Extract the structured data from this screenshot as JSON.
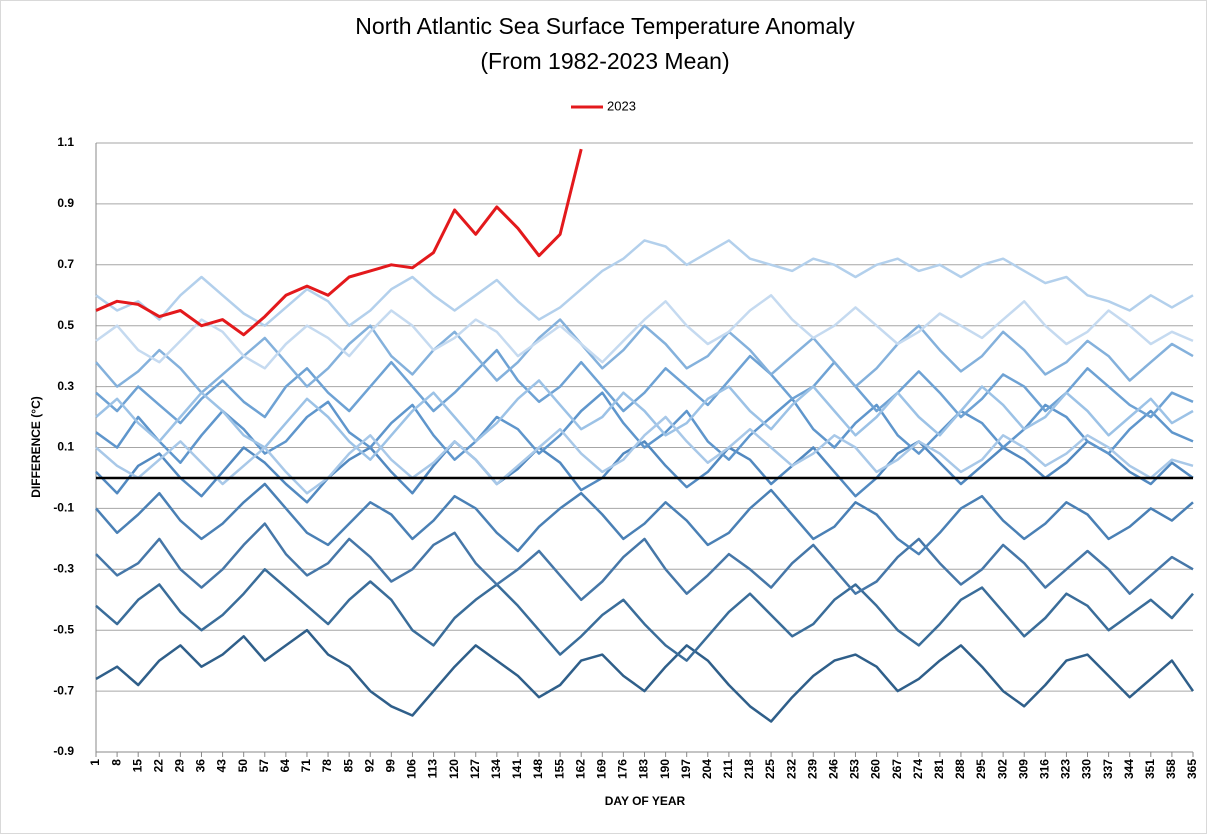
{
  "chart_data": {
    "type": "line",
    "title": "North Atlantic Sea Surface Temperature Anomaly",
    "subtitle": "(From 1982-2023 Mean)",
    "x_label": "DAY OF YEAR",
    "y_label": "DIFFERENCE (°C)",
    "x": [
      1,
      8,
      15,
      22,
      29,
      36,
      43,
      50,
      57,
      64,
      71,
      78,
      85,
      92,
      99,
      106,
      113,
      120,
      127,
      134,
      141,
      148,
      155,
      162,
      169,
      176,
      183,
      190,
      197,
      204,
      211,
      218,
      225,
      232,
      239,
      246,
      253,
      260,
      267,
      274,
      281,
      288,
      295,
      302,
      309,
      316,
      323,
      330,
      337,
      344,
      351,
      358,
      365
    ],
    "xlim": [
      1,
      365
    ],
    "xticks": [
      1,
      8,
      15,
      22,
      29,
      36,
      43,
      50,
      57,
      64,
      71,
      78,
      85,
      92,
      99,
      106,
      113,
      120,
      127,
      134,
      141,
      148,
      155,
      162,
      169,
      176,
      183,
      190,
      197,
      204,
      211,
      218,
      225,
      232,
      239,
      246,
      253,
      260,
      267,
      274,
      281,
      288,
      295,
      302,
      309,
      316,
      323,
      330,
      337,
      344,
      351,
      358,
      365
    ],
    "ylim": [
      -0.9,
      1.1
    ],
    "yticks": [
      -0.9,
      -0.7,
      -0.5,
      -0.3,
      -0.1,
      0.1,
      0.3,
      0.5,
      0.7,
      0.9,
      1.1
    ],
    "grid": true,
    "legend": "top",
    "reference_line": {
      "value": 0,
      "color": "#000000"
    },
    "series": [
      {
        "color": "#2f5f8a",
        "values": [
          -0.66,
          -0.62,
          -0.68,
          -0.6,
          -0.55,
          -0.62,
          -0.58,
          -0.52,
          -0.6,
          -0.55,
          -0.5,
          -0.58,
          -0.62,
          -0.7,
          -0.75,
          -0.78,
          -0.7,
          -0.62,
          -0.55,
          -0.6,
          -0.65,
          -0.72,
          -0.68,
          -0.6,
          -0.58,
          -0.65,
          -0.7,
          -0.62,
          -0.55,
          -0.6,
          -0.68,
          -0.75,
          -0.8,
          -0.72,
          -0.65,
          -0.6,
          -0.58,
          -0.62,
          -0.7,
          -0.66,
          -0.6,
          -0.55,
          -0.62,
          -0.7,
          -0.75,
          -0.68,
          -0.6,
          -0.58,
          -0.65,
          -0.72,
          -0.66,
          -0.6,
          -0.7
        ]
      },
      {
        "color": "#3a6d9a",
        "values": [
          -0.42,
          -0.48,
          -0.4,
          -0.35,
          -0.44,
          -0.5,
          -0.45,
          -0.38,
          -0.3,
          -0.36,
          -0.42,
          -0.48,
          -0.4,
          -0.34,
          -0.4,
          -0.5,
          -0.55,
          -0.46,
          -0.4,
          -0.35,
          -0.42,
          -0.5,
          -0.58,
          -0.52,
          -0.45,
          -0.4,
          -0.48,
          -0.55,
          -0.6,
          -0.52,
          -0.44,
          -0.38,
          -0.45,
          -0.52,
          -0.48,
          -0.4,
          -0.35,
          -0.42,
          -0.5,
          -0.55,
          -0.48,
          -0.4,
          -0.36,
          -0.44,
          -0.52,
          -0.46,
          -0.38,
          -0.42,
          -0.5,
          -0.45,
          -0.4,
          -0.46,
          -0.38
        ]
      },
      {
        "color": "#4677a8",
        "values": [
          -0.25,
          -0.32,
          -0.28,
          -0.2,
          -0.3,
          -0.36,
          -0.3,
          -0.22,
          -0.15,
          -0.25,
          -0.32,
          -0.28,
          -0.2,
          -0.26,
          -0.34,
          -0.3,
          -0.22,
          -0.18,
          -0.28,
          -0.35,
          -0.3,
          -0.24,
          -0.32,
          -0.4,
          -0.34,
          -0.26,
          -0.2,
          -0.3,
          -0.38,
          -0.32,
          -0.25,
          -0.3,
          -0.36,
          -0.28,
          -0.22,
          -0.3,
          -0.38,
          -0.34,
          -0.26,
          -0.2,
          -0.28,
          -0.35,
          -0.3,
          -0.22,
          -0.28,
          -0.36,
          -0.3,
          -0.24,
          -0.3,
          -0.38,
          -0.32,
          -0.26,
          -0.3
        ]
      },
      {
        "color": "#4a80b5",
        "values": [
          -0.1,
          -0.18,
          -0.12,
          -0.05,
          -0.14,
          -0.2,
          -0.15,
          -0.08,
          -0.02,
          -0.1,
          -0.18,
          -0.22,
          -0.15,
          -0.08,
          -0.12,
          -0.2,
          -0.14,
          -0.06,
          -0.1,
          -0.18,
          -0.24,
          -0.16,
          -0.1,
          -0.05,
          -0.12,
          -0.2,
          -0.15,
          -0.08,
          -0.14,
          -0.22,
          -0.18,
          -0.1,
          -0.04,
          -0.12,
          -0.2,
          -0.16,
          -0.08,
          -0.12,
          -0.2,
          -0.25,
          -0.18,
          -0.1,
          -0.06,
          -0.14,
          -0.2,
          -0.15,
          -0.08,
          -0.12,
          -0.2,
          -0.16,
          -0.1,
          -0.14,
          -0.08
        ]
      },
      {
        "color": "#5289c0",
        "values": [
          0.02,
          -0.05,
          0.04,
          0.08,
          0.0,
          -0.06,
          0.02,
          0.1,
          0.05,
          -0.02,
          -0.08,
          0.0,
          0.06,
          0.1,
          0.02,
          -0.05,
          0.04,
          0.12,
          0.06,
          -0.02,
          0.03,
          0.1,
          0.05,
          -0.04,
          0.0,
          0.08,
          0.12,
          0.04,
          -0.03,
          0.02,
          0.1,
          0.06,
          -0.02,
          0.04,
          0.1,
          0.02,
          -0.06,
          0.0,
          0.08,
          0.12,
          0.05,
          -0.02,
          0.04,
          0.1,
          0.06,
          0.0,
          0.05,
          0.12,
          0.08,
          0.02,
          -0.02,
          0.05,
          0.0
        ]
      },
      {
        "color": "#5f96cc",
        "values": [
          0.15,
          0.1,
          0.2,
          0.12,
          0.05,
          0.14,
          0.22,
          0.16,
          0.08,
          0.12,
          0.2,
          0.25,
          0.15,
          0.1,
          0.18,
          0.24,
          0.14,
          0.06,
          0.12,
          0.2,
          0.16,
          0.08,
          0.14,
          0.22,
          0.28,
          0.18,
          0.1,
          0.15,
          0.22,
          0.12,
          0.06,
          0.14,
          0.2,
          0.26,
          0.16,
          0.1,
          0.18,
          0.24,
          0.14,
          0.08,
          0.15,
          0.22,
          0.18,
          0.1,
          0.16,
          0.24,
          0.2,
          0.12,
          0.08,
          0.16,
          0.22,
          0.15,
          0.12
        ]
      },
      {
        "color": "#6ea2d4",
        "values": [
          0.28,
          0.22,
          0.3,
          0.24,
          0.18,
          0.26,
          0.32,
          0.25,
          0.2,
          0.3,
          0.36,
          0.28,
          0.22,
          0.3,
          0.38,
          0.3,
          0.22,
          0.28,
          0.35,
          0.42,
          0.32,
          0.25,
          0.3,
          0.38,
          0.3,
          0.22,
          0.28,
          0.36,
          0.3,
          0.24,
          0.32,
          0.4,
          0.34,
          0.26,
          0.3,
          0.38,
          0.3,
          0.22,
          0.28,
          0.35,
          0.28,
          0.2,
          0.26,
          0.34,
          0.3,
          0.22,
          0.28,
          0.36,
          0.3,
          0.24,
          0.2,
          0.28,
          0.25
        ]
      },
      {
        "color": "#84b1dc",
        "values": [
          0.38,
          0.3,
          0.35,
          0.42,
          0.36,
          0.28,
          0.34,
          0.4,
          0.46,
          0.38,
          0.3,
          0.36,
          0.44,
          0.5,
          0.4,
          0.34,
          0.42,
          0.48,
          0.4,
          0.32,
          0.38,
          0.46,
          0.52,
          0.44,
          0.36,
          0.42,
          0.5,
          0.44,
          0.36,
          0.4,
          0.48,
          0.42,
          0.34,
          0.4,
          0.46,
          0.38,
          0.3,
          0.36,
          0.44,
          0.5,
          0.42,
          0.35,
          0.4,
          0.48,
          0.42,
          0.34,
          0.38,
          0.45,
          0.4,
          0.32,
          0.38,
          0.44,
          0.4
        ]
      },
      {
        "color": "#9cc2e6",
        "values": [
          0.2,
          0.26,
          0.18,
          0.12,
          0.2,
          0.28,
          0.22,
          0.14,
          0.1,
          0.18,
          0.26,
          0.2,
          0.12,
          0.06,
          0.14,
          0.22,
          0.28,
          0.2,
          0.12,
          0.18,
          0.26,
          0.32,
          0.24,
          0.16,
          0.2,
          0.28,
          0.22,
          0.14,
          0.18,
          0.26,
          0.3,
          0.22,
          0.16,
          0.24,
          0.3,
          0.22,
          0.14,
          0.2,
          0.28,
          0.2,
          0.14,
          0.22,
          0.3,
          0.24,
          0.16,
          0.2,
          0.28,
          0.22,
          0.14,
          0.2,
          0.26,
          0.18,
          0.22
        ]
      },
      {
        "color": "#b3d0ec",
        "values": [
          0.6,
          0.55,
          0.58,
          0.52,
          0.6,
          0.66,
          0.6,
          0.54,
          0.5,
          0.56,
          0.62,
          0.58,
          0.5,
          0.55,
          0.62,
          0.66,
          0.6,
          0.55,
          0.6,
          0.65,
          0.58,
          0.52,
          0.56,
          0.62,
          0.68,
          0.72,
          0.78,
          0.76,
          0.7,
          0.74,
          0.78,
          0.72,
          0.7,
          0.68,
          0.72,
          0.7,
          0.66,
          0.7,
          0.72,
          0.68,
          0.7,
          0.66,
          0.7,
          0.72,
          0.68,
          0.64,
          0.66,
          0.6,
          0.58,
          0.55,
          0.6,
          0.56,
          0.6
        ]
      },
      {
        "color": "#c5daf0",
        "values": [
          0.45,
          0.5,
          0.42,
          0.38,
          0.45,
          0.52,
          0.48,
          0.4,
          0.36,
          0.44,
          0.5,
          0.46,
          0.4,
          0.48,
          0.55,
          0.5,
          0.42,
          0.46,
          0.52,
          0.48,
          0.4,
          0.45,
          0.5,
          0.44,
          0.38,
          0.45,
          0.52,
          0.58,
          0.5,
          0.44,
          0.48,
          0.55,
          0.6,
          0.52,
          0.46,
          0.5,
          0.56,
          0.5,
          0.44,
          0.48,
          0.54,
          0.5,
          0.46,
          0.52,
          0.58,
          0.5,
          0.44,
          0.48,
          0.55,
          0.5,
          0.44,
          0.48,
          0.45
        ]
      },
      {
        "color": "#a8c8e8",
        "values": [
          0.1,
          0.04,
          0.0,
          0.06,
          0.12,
          0.05,
          -0.02,
          0.04,
          0.1,
          0.02,
          -0.05,
          0.0,
          0.08,
          0.14,
          0.06,
          0.0,
          0.05,
          0.12,
          0.06,
          -0.02,
          0.04,
          0.1,
          0.16,
          0.08,
          0.02,
          0.06,
          0.14,
          0.2,
          0.12,
          0.05,
          0.1,
          0.16,
          0.1,
          0.04,
          0.08,
          0.14,
          0.1,
          0.02,
          0.06,
          0.12,
          0.08,
          0.02,
          0.06,
          0.14,
          0.1,
          0.04,
          0.08,
          0.14,
          0.1,
          0.04,
          0.0,
          0.06,
          0.04
        ]
      },
      {
        "name": "2023",
        "color": "#e3191c",
        "values": [
          0.55,
          0.58,
          0.57,
          0.53,
          0.55,
          0.5,
          0.52,
          0.47,
          0.53,
          0.6,
          0.63,
          0.6,
          0.66,
          0.68,
          0.7,
          0.69,
          0.74,
          0.88,
          0.8,
          0.89,
          0.82,
          0.73,
          0.8,
          1.08,
          null,
          null,
          null,
          null,
          null,
          null,
          null,
          null,
          null,
          null,
          null,
          null,
          null,
          null,
          null,
          null,
          null,
          null,
          null,
          null,
          null,
          null,
          null,
          null,
          null,
          null,
          null,
          null,
          null
        ]
      }
    ]
  }
}
